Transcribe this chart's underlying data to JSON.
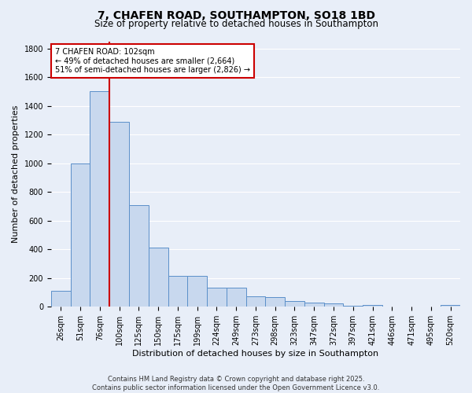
{
  "title": "7, CHAFEN ROAD, SOUTHAMPTON, SO18 1BD",
  "subtitle": "Size of property relative to detached houses in Southampton",
  "xlabel": "Distribution of detached houses by size in Southampton",
  "ylabel": "Number of detached properties",
  "categories": [
    "26sqm",
    "51sqm",
    "76sqm",
    "100sqm",
    "125sqm",
    "150sqm",
    "175sqm",
    "199sqm",
    "224sqm",
    "249sqm",
    "273sqm",
    "298sqm",
    "323sqm",
    "347sqm",
    "372sqm",
    "397sqm",
    "421sqm",
    "446sqm",
    "471sqm",
    "495sqm",
    "520sqm"
  ],
  "values": [
    110,
    1000,
    1500,
    1290,
    710,
    410,
    215,
    215,
    135,
    135,
    75,
    65,
    40,
    30,
    25,
    10,
    15,
    0,
    0,
    0,
    15
  ],
  "bar_color": "#c8d8ee",
  "bar_edge_color": "#5b8fc9",
  "background_color": "#e8eef8",
  "grid_color": "#ffffff",
  "annotation_text": "7 CHAFEN ROAD: 102sqm\n← 49% of detached houses are smaller (2,664)\n51% of semi-detached houses are larger (2,826) →",
  "annotation_box_color": "#ffffff",
  "annotation_box_edge": "#cc0000",
  "red_line_color": "#cc0000",
  "footer": "Contains HM Land Registry data © Crown copyright and database right 2025.\nContains public sector information licensed under the Open Government Licence v3.0.",
  "ylim": [
    0,
    1850
  ],
  "title_fontsize": 10,
  "subtitle_fontsize": 8.5,
  "tick_fontsize": 7,
  "ylabel_fontsize": 8,
  "xlabel_fontsize": 8,
  "footer_fontsize": 6,
  "annot_fontsize": 7
}
